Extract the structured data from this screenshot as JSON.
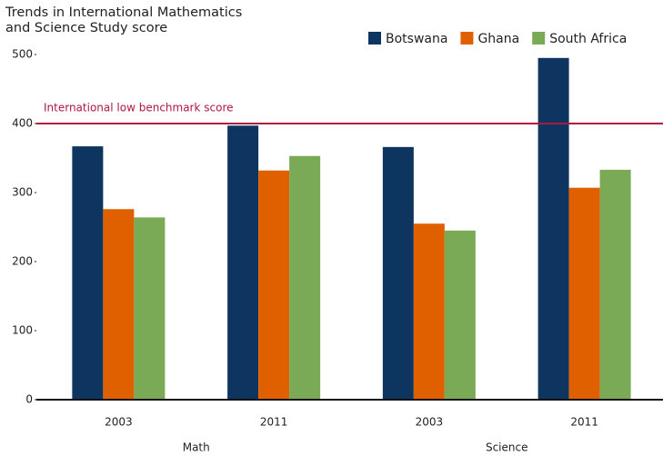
{
  "chart_data": {
    "type": "bar",
    "title": "Trends in International Mathematics and Science Study score",
    "categories": [
      "2003",
      "2011",
      "2003",
      "2011"
    ],
    "groups": [
      "Math",
      "Science"
    ],
    "series": [
      {
        "name": "Botswana",
        "color": "#0d3560",
        "values": [
          367,
          397,
          366,
          495
        ]
      },
      {
        "name": "Ghana",
        "color": "#e06000",
        "values": [
          276,
          332,
          255,
          307
        ]
      },
      {
        "name": "South Africa",
        "color": "#7aaa55",
        "values": [
          264,
          353,
          245,
          333
        ]
      }
    ],
    "reference_line": {
      "value": 400,
      "label": "International low benchmark score",
      "color": "#b0173f"
    },
    "ylim": [
      0,
      500
    ],
    "yticks": [
      0,
      100,
      200,
      300,
      400,
      500
    ],
    "grid": false,
    "legend": "top-right"
  }
}
